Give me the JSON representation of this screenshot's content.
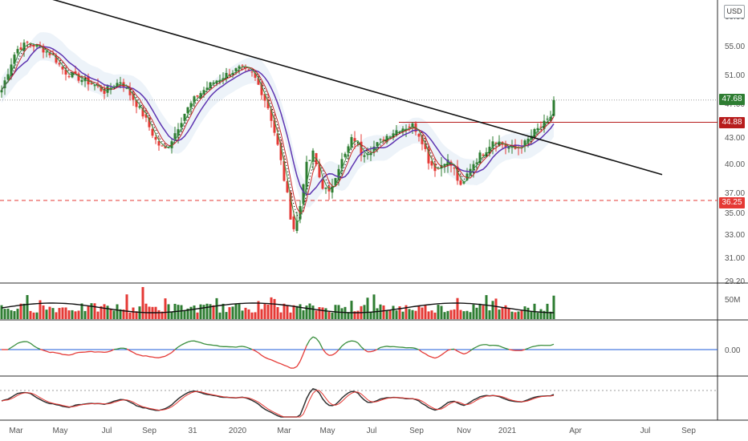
{
  "currency_button": "USD",
  "price_axis": {
    "ticks": [
      "55.00",
      "51.00",
      "47.00",
      "43.00",
      "40.00",
      "37.00",
      "35.00",
      "33.00",
      "31.00",
      "29.20"
    ],
    "top_label": "60.00"
  },
  "price_tags": [
    {
      "label": "47.68",
      "color": "#2e7d32"
    },
    {
      "label": "44.88",
      "color": "#b71c1c"
    },
    {
      "label": "36.25",
      "color": "#e53935"
    }
  ],
  "volume_axis_label": "50M",
  "oscillator_axis_label": "0.00",
  "time_axis": [
    "Mar",
    "May",
    "Jul",
    "Sep",
    "31",
    "2020",
    "Mar",
    "May",
    "Jul",
    "Sep",
    "Nov",
    "2021",
    "Apr",
    "Jul",
    "Sep"
  ],
  "colors": {
    "up": "#2e7d32",
    "down": "#e53935",
    "trendline": "#111111",
    "ma_purple": "#5e35b1",
    "ma_red": "#c62828",
    "ma_green": "#388e3c",
    "band": "#e8f0f7",
    "zero_line": "#1e5bd8"
  },
  "chart_data": [
    {
      "type": "line",
      "pane": "price candlesticks with moving averages",
      "x": [
        "Mar",
        "May",
        "Jul",
        "Sep",
        "31",
        "2020",
        "Mar",
        "May",
        "Jul",
        "Sep",
        "Nov",
        "2021"
      ],
      "y": [
        54.5,
        53.0,
        49.5,
        42.5,
        48.5,
        51.5,
        35.5,
        39.0,
        41.5,
        42.8,
        38.5,
        47.68
      ],
      "last_price": 47.68,
      "horizontal_levels": [
        {
          "value": 44.88,
          "style": "solid",
          "color": "#b71c1c"
        },
        {
          "value": 36.25,
          "style": "dashed",
          "color": "#e53935"
        }
      ],
      "trendline": {
        "from": {
          "x": "Feb",
          "y": 58.5
        },
        "to": {
          "x": "Jul",
          "y": 40.2
        }
      },
      "y_axis_scale": "log",
      "ylim": [
        29.2,
        60
      ]
    },
    {
      "type": "bar",
      "pane": "volume",
      "axis_label": "50M"
    },
    {
      "type": "line",
      "pane": "oscillator",
      "zero_label": "0.00"
    },
    {
      "type": "line",
      "pane": "stochastic"
    }
  ]
}
